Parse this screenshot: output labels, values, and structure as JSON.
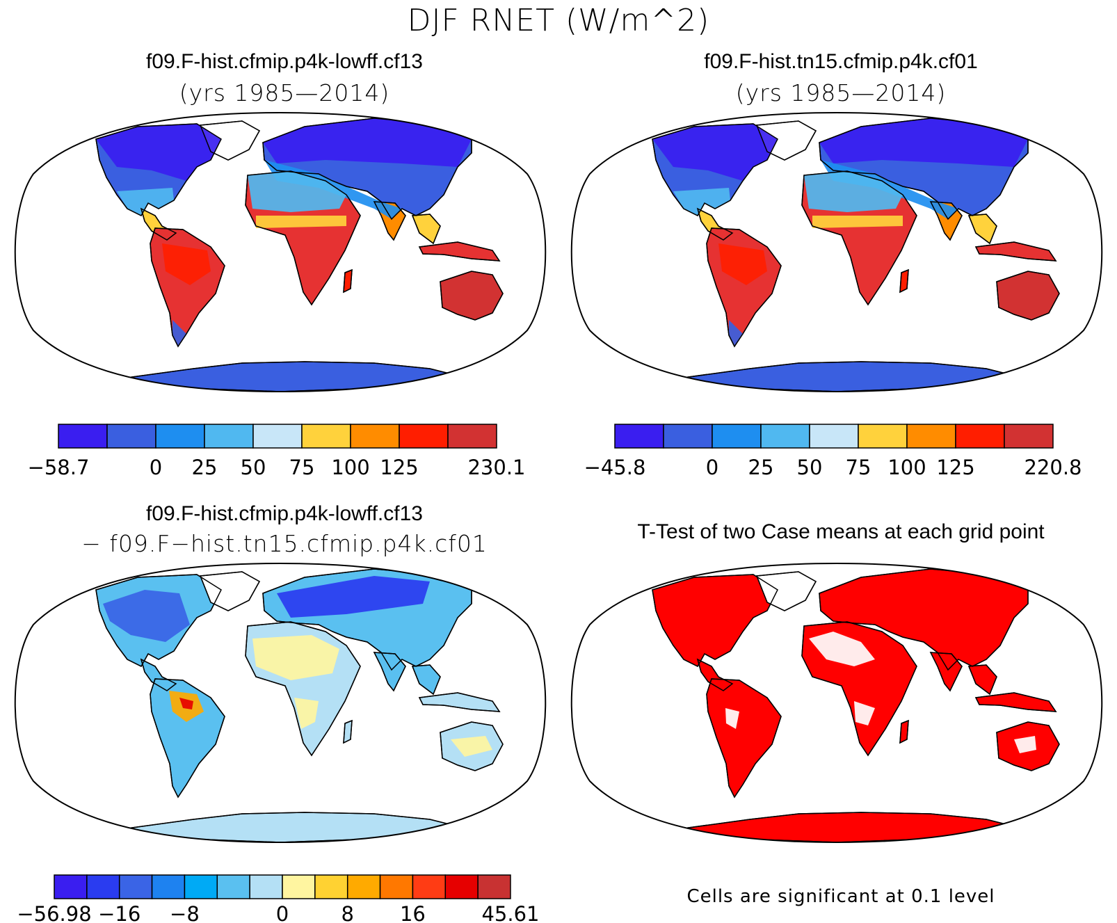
{
  "title": "DJF RNET (W/m^2)",
  "colors": {
    "frame": "#000000",
    "ocean": "#ffffff",
    "signif": "#ff0000"
  },
  "panels": [
    {
      "id": "panel-case1",
      "title": "f09.F-hist.cfmip.p4k-lowff.cf13",
      "subtitle": "(yrs 1985—2014)",
      "colorbar": {
        "colors": [
          "#3a1ef0",
          "#3a5fe0",
          "#1e8ef0",
          "#50b8f0",
          "#c8e6f8",
          "#ffd23c",
          "#ff8c00",
          "#ff1e00",
          "#d23232"
        ],
        "labels": [
          "−58.7",
          "",
          "0",
          "25",
          "50",
          "75",
          "100",
          "125",
          "",
          "230.1"
        ]
      }
    },
    {
      "id": "panel-case2",
      "title": "f09.F-hist.tn15.cfmip.p4k.cf01",
      "subtitle": "(yrs 1985—2014)",
      "colorbar": {
        "colors": [
          "#3a1ef0",
          "#3a5fe0",
          "#1e8ef0",
          "#50b8f0",
          "#c8e6f8",
          "#ffd23c",
          "#ff8c00",
          "#ff1e00",
          "#d23232"
        ],
        "labels": [
          "−45.8",
          "",
          "0",
          "25",
          "50",
          "75",
          "100",
          "125",
          "",
          "220.8"
        ]
      }
    },
    {
      "id": "panel-diff",
      "title": "f09.F-hist.cfmip.p4k-lowff.cf13",
      "subtitle": "− f09.F−hist.tn15.cfmip.p4k.cf01",
      "colorbar": {
        "colors": [
          "#3a1ef0",
          "#2a3cf0",
          "#3a64e6",
          "#1e82f0",
          "#00aaf5",
          "#5ac0f0",
          "#b4e0f5",
          "#fff5a0",
          "#ffd232",
          "#ffaa00",
          "#ff7800",
          "#ff3c14",
          "#e60000",
          "#c83232"
        ],
        "labels": [
          "−56.98",
          "",
          "−16",
          "",
          "−8",
          "",
          "",
          "0",
          "",
          "8",
          "",
          "16",
          "",
          "",
          "45.61"
        ]
      }
    },
    {
      "id": "panel-ttest",
      "title": "T-Test of two Case means at each grid point",
      "note": "Cells are significant at 0.1 level"
    }
  ]
}
